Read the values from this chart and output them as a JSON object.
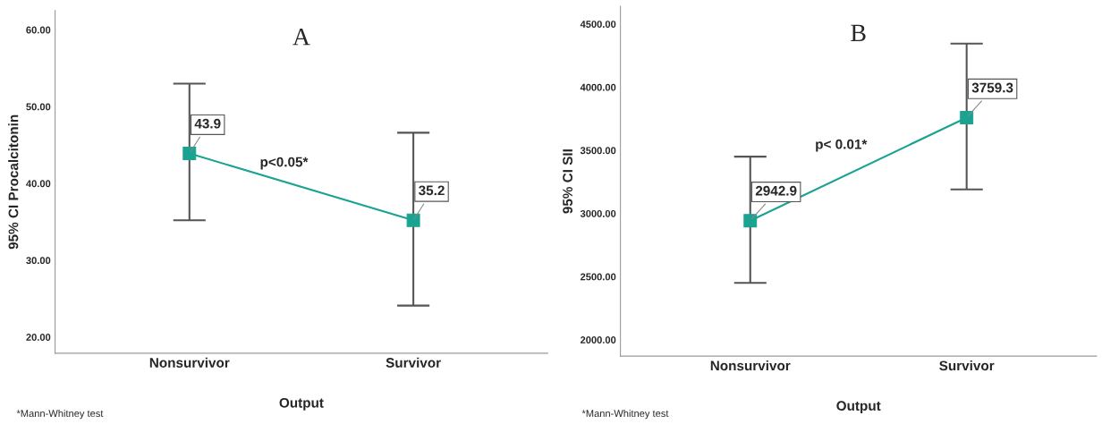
{
  "chart_data": [
    {
      "type": "line",
      "title": "A",
      "categories": [
        "Nonsurvivor",
        "Survivor"
      ],
      "xlabel": "Output",
      "ylabel": "95% CI Procalcitonin",
      "series": [
        {
          "color": "#1aa391",
          "values": [
            43.9,
            35.2
          ],
          "errors": [
            [
              35.2,
              53.0
            ],
            [
              24.1,
              46.6
            ]
          ]
        }
      ],
      "ylim": [
        17.9,
        62.5
      ],
      "yticks": [
        {
          "value": 20,
          "label": "20.00"
        },
        {
          "value": 30,
          "label": "30.00"
        },
        {
          "value": 40,
          "label": "40.00"
        },
        {
          "value": 50,
          "label": "50.00"
        },
        {
          "value": 60,
          "label": "60.00"
        }
      ],
      "marker": "square",
      "data_labels": true,
      "grid": false,
      "legend": false,
      "annotations": [
        "p<0.05*",
        "*Mann-Whitney test"
      ]
    },
    {
      "type": "line",
      "title": "B",
      "categories": [
        "Nonsurvivor",
        "Survivor"
      ],
      "xlabel": "Output",
      "ylabel": "95% CI SII",
      "series": [
        {
          "color": "#1aa391",
          "values": [
            2942.9,
            3759.3
          ],
          "errors": [
            [
              2450,
              3450
            ],
            [
              3190,
              4345
            ]
          ]
        }
      ],
      "ylim": [
        1870,
        4640
      ],
      "yticks": [
        {
          "value": 2000,
          "label": "2000.00"
        },
        {
          "value": 2500,
          "label": "2500.00"
        },
        {
          "value": 3000,
          "label": "3000.00"
        },
        {
          "value": 3500,
          "label": "3500.00"
        },
        {
          "value": 4000,
          "label": "4000.00"
        },
        {
          "value": 4500,
          "label": "4500.00"
        }
      ],
      "marker": "square",
      "data_labels": true,
      "grid": false,
      "legend": false,
      "annotations": [
        "p< 0.01*",
        "*Mann-Whitney test"
      ]
    }
  ]
}
